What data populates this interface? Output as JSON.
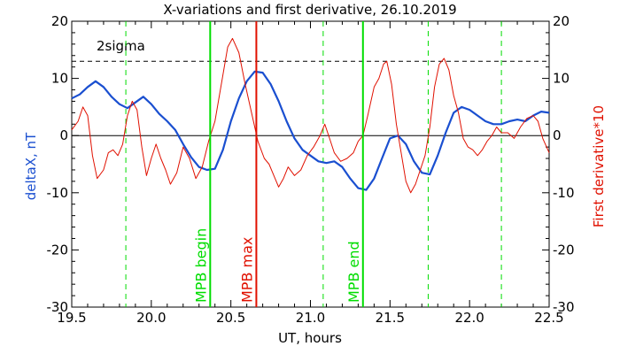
{
  "chart_data": {
    "type": "line",
    "title": "X-variations and first derivative, 26.10.2019",
    "xlabel": "UT, hours",
    "ylabel_left": "deltaX, nT",
    "ylabel_right": "First derivative*10",
    "xlim": [
      19.5,
      22.5
    ],
    "ylim": [
      -30,
      20
    ],
    "x_ticks": [
      "19.5",
      "20.0",
      "20.5",
      "21.0",
      "21.5",
      "22.0",
      "22.5"
    ],
    "y_ticks": [
      "20",
      "10",
      "0",
      "-10",
      "-20",
      "-30"
    ],
    "threshold": {
      "label": "2sigma",
      "value": 13
    },
    "zero_line": 0,
    "markers": [
      {
        "label": "MPB begin",
        "x": 20.37,
        "color": "#00dd00"
      },
      {
        "label": "MPB max",
        "x": 20.66,
        "color": "#e01000"
      },
      {
        "label": "MPB end",
        "x": 21.33,
        "color": "#00dd00"
      }
    ],
    "dashed_markers": [
      19.84,
      21.08,
      21.74,
      22.2
    ],
    "series": [
      {
        "name": "deltaX, nT",
        "color": "#1a4fd0",
        "points": [
          [
            19.5,
            6.5
          ],
          [
            19.55,
            7.2
          ],
          [
            19.6,
            8.5
          ],
          [
            19.65,
            9.5
          ],
          [
            19.7,
            8.5
          ],
          [
            19.75,
            6.8
          ],
          [
            19.8,
            5.5
          ],
          [
            19.85,
            4.8
          ],
          [
            19.9,
            5.8
          ],
          [
            19.95,
            6.8
          ],
          [
            20.0,
            5.5
          ],
          [
            20.05,
            3.8
          ],
          [
            20.1,
            2.5
          ],
          [
            20.15,
            1.0
          ],
          [
            20.2,
            -1.5
          ],
          [
            20.25,
            -3.8
          ],
          [
            20.3,
            -5.5
          ],
          [
            20.35,
            -6.0
          ],
          [
            20.4,
            -5.8
          ],
          [
            20.45,
            -2.5
          ],
          [
            20.5,
            2.5
          ],
          [
            20.55,
            6.5
          ],
          [
            20.6,
            9.5
          ],
          [
            20.65,
            11.2
          ],
          [
            20.7,
            11.0
          ],
          [
            20.75,
            9.0
          ],
          [
            20.8,
            6.0
          ],
          [
            20.85,
            2.5
          ],
          [
            20.9,
            -0.5
          ],
          [
            20.95,
            -2.5
          ],
          [
            21.0,
            -3.5
          ],
          [
            21.05,
            -4.5
          ],
          [
            21.1,
            -4.8
          ],
          [
            21.15,
            -4.5
          ],
          [
            21.2,
            -5.5
          ],
          [
            21.25,
            -7.5
          ],
          [
            21.3,
            -9.2
          ],
          [
            21.35,
            -9.5
          ],
          [
            21.4,
            -7.5
          ],
          [
            21.45,
            -4.0
          ],
          [
            21.5,
            -0.5
          ],
          [
            21.55,
            0.0
          ],
          [
            21.6,
            -1.5
          ],
          [
            21.65,
            -4.5
          ],
          [
            21.7,
            -6.5
          ],
          [
            21.75,
            -6.8
          ],
          [
            21.8,
            -3.5
          ],
          [
            21.85,
            0.5
          ],
          [
            21.9,
            4.0
          ],
          [
            21.95,
            5.0
          ],
          [
            22.0,
            4.5
          ],
          [
            22.05,
            3.5
          ],
          [
            22.1,
            2.5
          ],
          [
            22.15,
            2.0
          ],
          [
            22.2,
            2.0
          ],
          [
            22.25,
            2.5
          ],
          [
            22.3,
            2.8
          ],
          [
            22.35,
            2.5
          ],
          [
            22.4,
            3.5
          ],
          [
            22.45,
            4.2
          ],
          [
            22.5,
            4.0
          ]
        ]
      },
      {
        "name": "First derivative*10",
        "color": "#e01000",
        "points": [
          [
            19.5,
            1.0
          ],
          [
            19.54,
            2.5
          ],
          [
            19.57,
            5.0
          ],
          [
            19.6,
            3.5
          ],
          [
            19.63,
            -3.5
          ],
          [
            19.66,
            -7.5
          ],
          [
            19.7,
            -6.0
          ],
          [
            19.73,
            -3.0
          ],
          [
            19.76,
            -2.5
          ],
          [
            19.79,
            -3.5
          ],
          [
            19.82,
            -1.5
          ],
          [
            19.85,
            3.5
          ],
          [
            19.88,
            6.0
          ],
          [
            19.91,
            4.5
          ],
          [
            19.94,
            -2.0
          ],
          [
            19.97,
            -7.0
          ],
          [
            20.0,
            -4.0
          ],
          [
            20.03,
            -1.5
          ],
          [
            20.06,
            -4.0
          ],
          [
            20.09,
            -6.0
          ],
          [
            20.12,
            -8.5
          ],
          [
            20.16,
            -6.5
          ],
          [
            20.2,
            -2.0
          ],
          [
            20.24,
            -4.0
          ],
          [
            20.28,
            -7.5
          ],
          [
            20.32,
            -5.5
          ],
          [
            20.36,
            -1.0
          ],
          [
            20.4,
            2.5
          ],
          [
            20.44,
            9.0
          ],
          [
            20.48,
            15.5
          ],
          [
            20.51,
            17.0
          ],
          [
            20.55,
            14.5
          ],
          [
            20.59,
            9.0
          ],
          [
            20.63,
            4.0
          ],
          [
            20.67,
            -1.0
          ],
          [
            20.71,
            -4.0
          ],
          [
            20.74,
            -5.0
          ],
          [
            20.77,
            -7.0
          ],
          [
            20.8,
            -9.0
          ],
          [
            20.83,
            -7.5
          ],
          [
            20.86,
            -5.5
          ],
          [
            20.9,
            -7.0
          ],
          [
            20.94,
            -6.0
          ],
          [
            20.98,
            -3.5
          ],
          [
            21.02,
            -2.0
          ],
          [
            21.06,
            0.0
          ],
          [
            21.09,
            2.0
          ],
          [
            21.12,
            -0.5
          ],
          [
            21.15,
            -3.0
          ],
          [
            21.19,
            -4.5
          ],
          [
            21.23,
            -4.0
          ],
          [
            21.27,
            -3.0
          ],
          [
            21.3,
            -1.0
          ],
          [
            21.33,
            0.0
          ],
          [
            21.36,
            3.5
          ],
          [
            21.4,
            8.5
          ],
          [
            21.43,
            10.0
          ],
          [
            21.46,
            12.5
          ],
          [
            21.48,
            13.0
          ],
          [
            21.51,
            9.0
          ],
          [
            21.54,
            2.0
          ],
          [
            21.57,
            -3.0
          ],
          [
            21.6,
            -8.0
          ],
          [
            21.63,
            -10.0
          ],
          [
            21.66,
            -8.5
          ],
          [
            21.69,
            -6.0
          ],
          [
            21.72,
            -3.5
          ],
          [
            21.75,
            1.5
          ],
          [
            21.78,
            8.5
          ],
          [
            21.81,
            12.5
          ],
          [
            21.84,
            13.5
          ],
          [
            21.87,
            11.5
          ],
          [
            21.9,
            7.0
          ],
          [
            21.93,
            4.0
          ],
          [
            21.96,
            -0.5
          ],
          [
            21.99,
            -2.0
          ],
          [
            22.02,
            -2.5
          ],
          [
            22.05,
            -3.5
          ],
          [
            22.08,
            -2.5
          ],
          [
            22.11,
            -1.0
          ],
          [
            22.14,
            0.0
          ],
          [
            22.17,
            1.5
          ],
          [
            22.2,
            0.5
          ],
          [
            22.24,
            0.5
          ],
          [
            22.28,
            -0.5
          ],
          [
            22.32,
            1.5
          ],
          [
            22.36,
            3.0
          ],
          [
            22.4,
            3.5
          ],
          [
            22.43,
            2.5
          ],
          [
            22.46,
            -0.5
          ],
          [
            22.5,
            -3.0
          ]
        ]
      }
    ]
  }
}
